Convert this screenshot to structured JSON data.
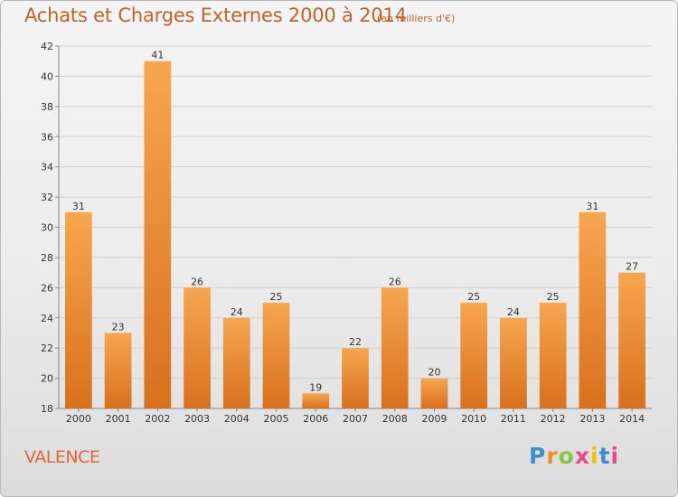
{
  "header": {
    "title": "Achats et Charges Externes 2000 à 2014",
    "unit": "(en milliers d'€)"
  },
  "footer": {
    "place": "VALENCE",
    "logo": [
      "P",
      "r",
      "o",
      "x",
      "i",
      "t",
      "i"
    ],
    "logo_colors": [
      "#3a8fd0",
      "#f28c1c",
      "#8cc63f",
      "#e84a8a",
      "#f5c000",
      "#3a8fd0",
      "#e84a8a"
    ]
  },
  "colors": {
    "bar_top": "#f7a650",
    "bar_bottom": "#d9701c",
    "text": "#333333",
    "axis": "#888888",
    "grid": "#d0d0d0"
  },
  "chart_data": {
    "type": "bar",
    "categories": [
      "2000",
      "2001",
      "2002",
      "2003",
      "2004",
      "2005",
      "2006",
      "2007",
      "2008",
      "2009",
      "2010",
      "2011",
      "2012",
      "2013",
      "2014"
    ],
    "values": [
      31,
      23,
      41,
      26,
      24,
      25,
      19,
      22,
      26,
      20,
      25,
      24,
      25,
      31,
      27
    ],
    "ylim": [
      18,
      42
    ],
    "yticks": [
      18,
      20,
      22,
      24,
      26,
      28,
      30,
      32,
      34,
      36,
      38,
      40,
      42
    ],
    "grid": true
  }
}
